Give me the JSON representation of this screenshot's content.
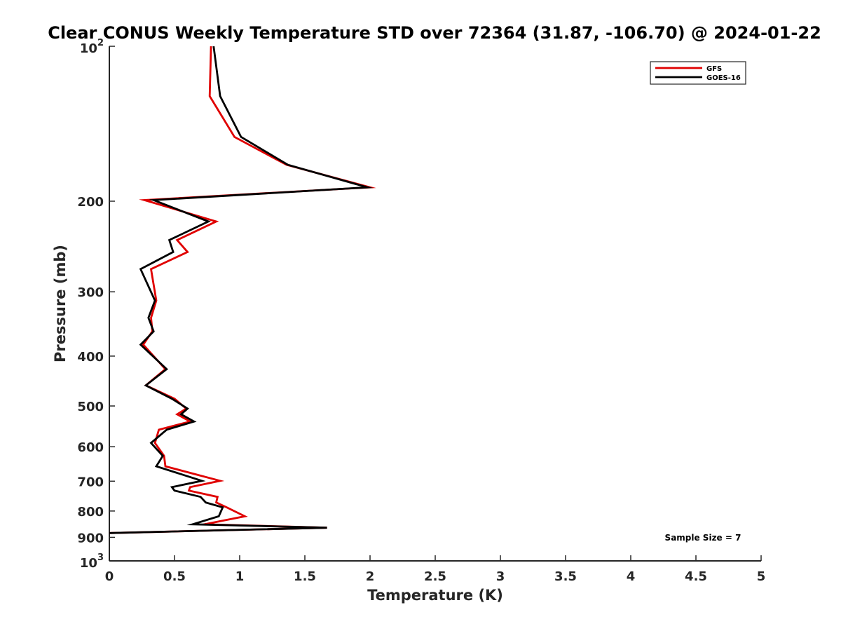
{
  "chart_data": {
    "type": "line",
    "title": "Clear CONUS Weekly Temperature STD over 72364 (31.87, -106.70) @ 2024-01-22",
    "xlabel": "Temperature (K)",
    "ylabel": "Pressure (mb)",
    "xlim": [
      0,
      5
    ],
    "ylim": [
      100,
      1000
    ],
    "y_scale": "log",
    "y_reversed": true,
    "x_ticks": [
      "0",
      "0.5",
      "1",
      "1.5",
      "2",
      "2.5",
      "3",
      "3.5",
      "4",
      "4.5",
      "5"
    ],
    "y_ticks": [
      {
        "value": 100,
        "base": "10",
        "exp": "2"
      },
      {
        "value": 200,
        "label": "200"
      },
      {
        "value": 300,
        "label": "300"
      },
      {
        "value": 400,
        "label": "400"
      },
      {
        "value": 500,
        "label": "500"
      },
      {
        "value": 600,
        "label": "600"
      },
      {
        "value": 700,
        "label": "700"
      },
      {
        "value": 800,
        "label": "800"
      },
      {
        "value": 900,
        "label": "900"
      },
      {
        "value": 1000,
        "base": "10",
        "exp": "3"
      }
    ],
    "grid": false,
    "legend_position": "top-right",
    "annotation": "Sample Size = 7",
    "series": [
      {
        "name": "GFS",
        "color": "#e00000",
        "points": [
          [
            0.78,
            100
          ],
          [
            0.77,
            125
          ],
          [
            0.96,
            150
          ],
          [
            1.36,
            170
          ],
          [
            2.0,
            188
          ],
          [
            0.27,
            199
          ],
          [
            0.82,
            219
          ],
          [
            0.52,
            238
          ],
          [
            0.6,
            251
          ],
          [
            0.32,
            271
          ],
          [
            0.36,
            312
          ],
          [
            0.32,
            337
          ],
          [
            0.33,
            358
          ],
          [
            0.26,
            380
          ],
          [
            0.43,
            424
          ],
          [
            0.28,
            456
          ],
          [
            0.5,
            484
          ],
          [
            0.59,
            506
          ],
          [
            0.52,
            519
          ],
          [
            0.62,
            536
          ],
          [
            0.38,
            556
          ],
          [
            0.35,
            590
          ],
          [
            0.42,
            625
          ],
          [
            0.43,
            655
          ],
          [
            0.85,
            699
          ],
          [
            0.62,
            719
          ],
          [
            0.61,
            730
          ],
          [
            0.83,
            751
          ],
          [
            0.82,
            770
          ],
          [
            0.9,
            787
          ],
          [
            1.04,
            819
          ],
          [
            0.73,
            849
          ],
          [
            1.67,
            862
          ],
          [
            0,
            883
          ]
        ]
      },
      {
        "name": "GOES-16",
        "color": "#000000",
        "points": [
          [
            0.8,
            100
          ],
          [
            0.85,
            125
          ],
          [
            1.01,
            150
          ],
          [
            1.37,
            170
          ],
          [
            1.98,
            188
          ],
          [
            0.34,
            199
          ],
          [
            0.76,
            219
          ],
          [
            0.46,
            238
          ],
          [
            0.49,
            251
          ],
          [
            0.24,
            271
          ],
          [
            0.35,
            312
          ],
          [
            0.3,
            337
          ],
          [
            0.34,
            358
          ],
          [
            0.24,
            380
          ],
          [
            0.44,
            424
          ],
          [
            0.28,
            456
          ],
          [
            0.48,
            484
          ],
          [
            0.6,
            506
          ],
          [
            0.55,
            519
          ],
          [
            0.65,
            536
          ],
          [
            0.44,
            556
          ],
          [
            0.32,
            590
          ],
          [
            0.41,
            625
          ],
          [
            0.36,
            655
          ],
          [
            0.71,
            699
          ],
          [
            0.48,
            719
          ],
          [
            0.5,
            730
          ],
          [
            0.7,
            751
          ],
          [
            0.74,
            770
          ],
          [
            0.87,
            787
          ],
          [
            0.84,
            819
          ],
          [
            0.64,
            849
          ],
          [
            1.67,
            862
          ],
          [
            0,
            883
          ]
        ]
      }
    ]
  }
}
